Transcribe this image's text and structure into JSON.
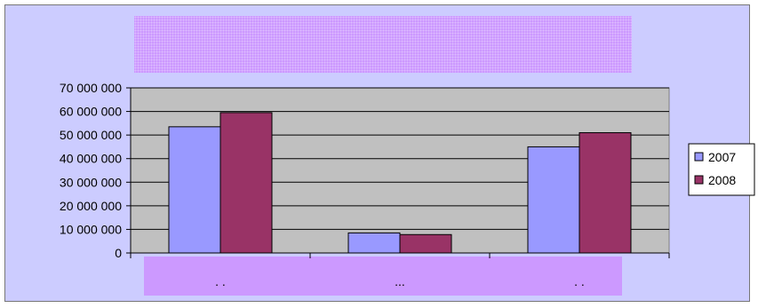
{
  "chart_data": {
    "type": "bar",
    "title": "",
    "xlabel": "",
    "ylabel": "",
    "categories": [
      ". .",
      "...",
      ". ."
    ],
    "series": [
      {
        "name": "2007",
        "values": [
          53500000,
          8500000,
          45000000
        ],
        "color": "#9999ff"
      },
      {
        "name": "2008",
        "values": [
          59500000,
          7800000,
          51000000
        ],
        "color": "#993366"
      }
    ],
    "ylim": [
      0,
      70000000
    ],
    "yticks": [
      0,
      10000000,
      20000000,
      30000000,
      40000000,
      50000000,
      60000000,
      70000000
    ],
    "ytick_labels": [
      "0",
      "10 000 000",
      "20 000 000",
      "30 000 000",
      "40 000 000",
      "50 000 000",
      "60 000 000",
      "70 000 000"
    ],
    "grid": true,
    "legend_position": "right",
    "plot_background": "#c0c0c0",
    "chart_background": "#ccccff",
    "title_band_color": "#cc99ff"
  }
}
